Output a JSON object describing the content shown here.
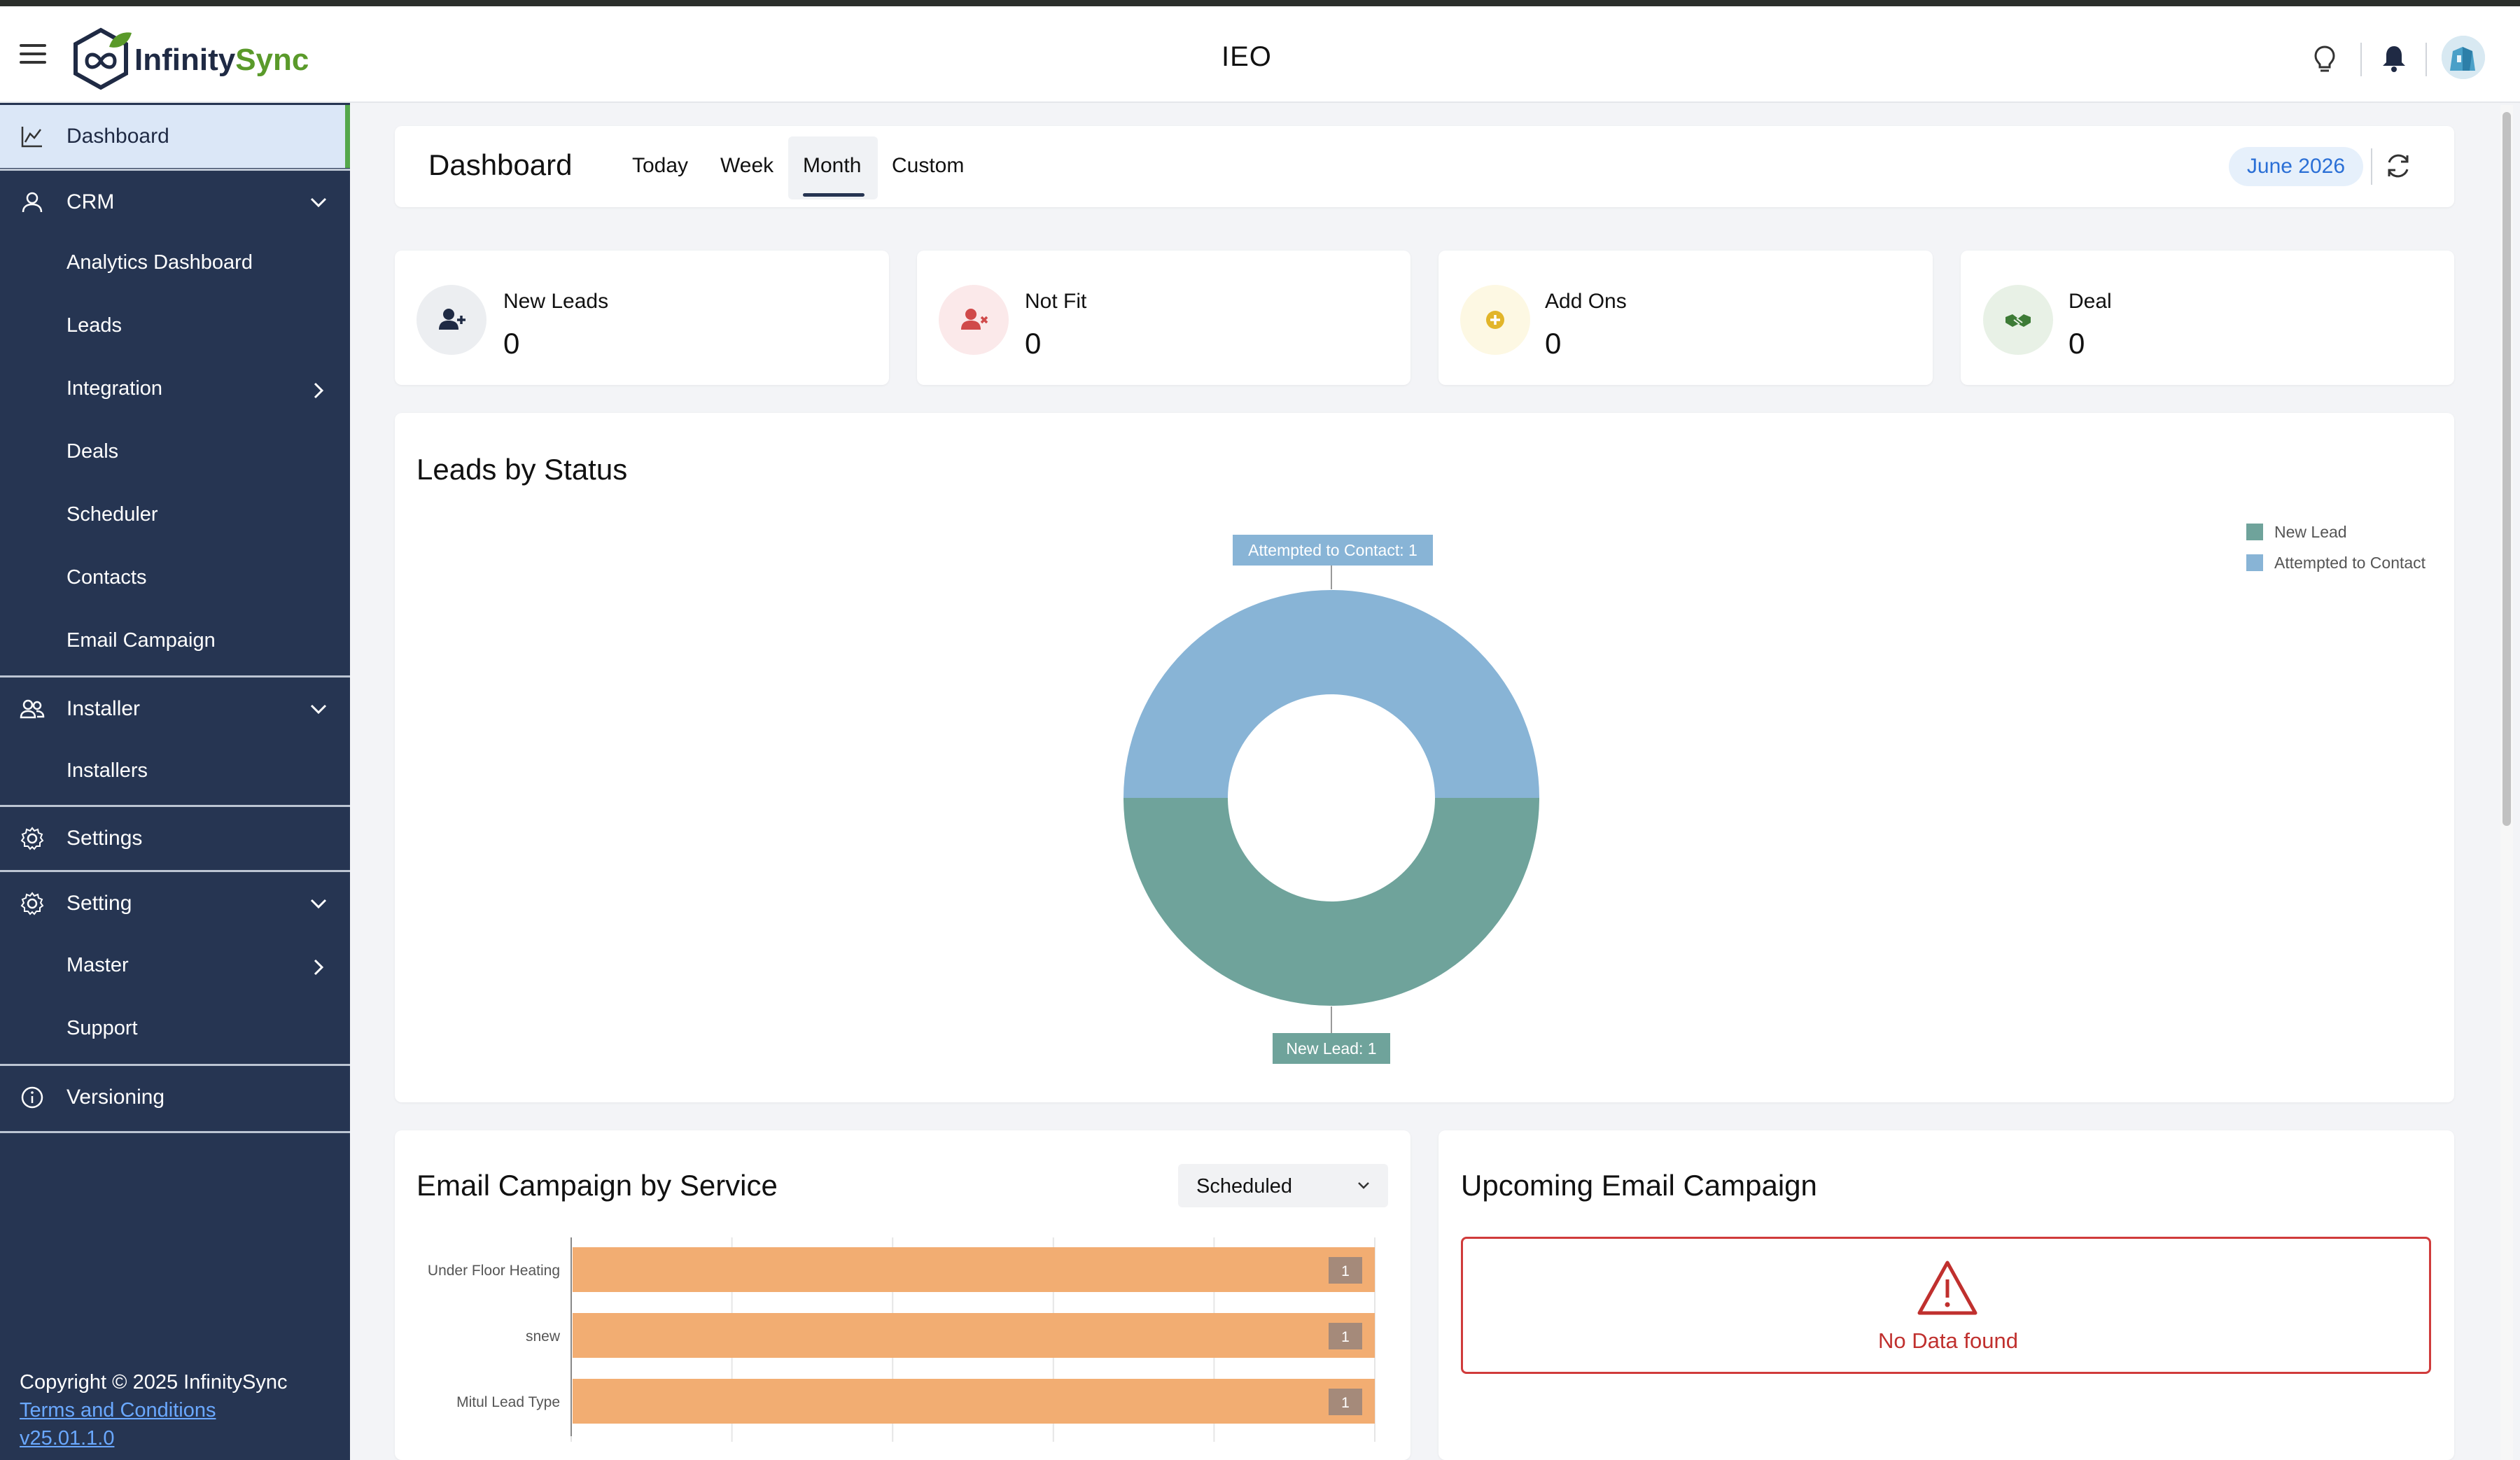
{
  "header": {
    "brand_a": "Infinity",
    "brand_b": "Sync",
    "app_title": "IEO",
    "brand_green": "#5a9a2a",
    "brand_navy": "#1f2a44"
  },
  "sidebar": {
    "background": "#263552",
    "items": [
      {
        "label": "Dashboard",
        "icon": "chart-icon"
      },
      {
        "label": "CRM",
        "icon": "user-icon"
      },
      {
        "label": "Analytics Dashboard"
      },
      {
        "label": "Leads"
      },
      {
        "label": "Integration"
      },
      {
        "label": "Deals"
      },
      {
        "label": "Scheduler"
      },
      {
        "label": "Contacts"
      },
      {
        "label": "Email Campaign"
      },
      {
        "label": "Installer",
        "icon": "users-icon"
      },
      {
        "label": "Installers"
      },
      {
        "label": "Settings",
        "icon": "gear-icon"
      },
      {
        "label": "Setting",
        "icon": "gear-icon"
      },
      {
        "label": "Master"
      },
      {
        "label": "Support"
      },
      {
        "label": "Versioning",
        "icon": "info-icon"
      }
    ],
    "footer": {
      "copyright": "Copyright © 2025 InfinitySync",
      "terms": "Terms and Conditions",
      "version": "v25.01.1.0"
    }
  },
  "toolbar": {
    "title": "Dashboard",
    "tabs": [
      "Today",
      "Week",
      "Month",
      "Custom"
    ],
    "active_tab": "Month",
    "date": "June 2026"
  },
  "stats": [
    {
      "label": "New Leads",
      "value": "0",
      "icon": "user-plus-icon",
      "bg": "#eceef1",
      "color": "#1f2a44"
    },
    {
      "label": "Not Fit",
      "value": "0",
      "icon": "user-x-icon",
      "bg": "#fbe9ea",
      "color": "#d04a4a"
    },
    {
      "label": "Add Ons",
      "value": "0",
      "icon": "plus-circle-icon",
      "bg": "#fdf8e3",
      "color": "#e2b52a"
    },
    {
      "label": "Deal",
      "value": "0",
      "icon": "handshake-icon",
      "bg": "#e8f1e6",
      "color": "#3d7b36"
    }
  ],
  "leads_by_status": {
    "title": "Leads by Status",
    "callouts": {
      "top": "Attempted to Contact: 1",
      "bottom": "New Lead: 1"
    }
  },
  "email_campaign": {
    "title": "Email Campaign by Service",
    "filter": "Scheduled"
  },
  "upcoming": {
    "title": "Upcoming Email Campaign",
    "empty_text": "No Data found"
  },
  "chart_data": [
    {
      "type": "pie",
      "title": "Leads by Status",
      "labels": [
        "New Lead",
        "Attempted to Contact"
      ],
      "values": [
        1,
        1
      ],
      "colors": [
        "#6fa39b",
        "#88b4d6"
      ],
      "donut": true,
      "legend": "top-right"
    },
    {
      "type": "bar",
      "orientation": "horizontal",
      "title": "Email Campaign by Service",
      "categories": [
        "Under Floor Heating",
        "snew",
        "Mitul Lead Type"
      ],
      "values": [
        1,
        1,
        1
      ],
      "colors": [
        "#f2ad72"
      ],
      "xlim": [
        0,
        1
      ],
      "grid": true
    }
  ]
}
